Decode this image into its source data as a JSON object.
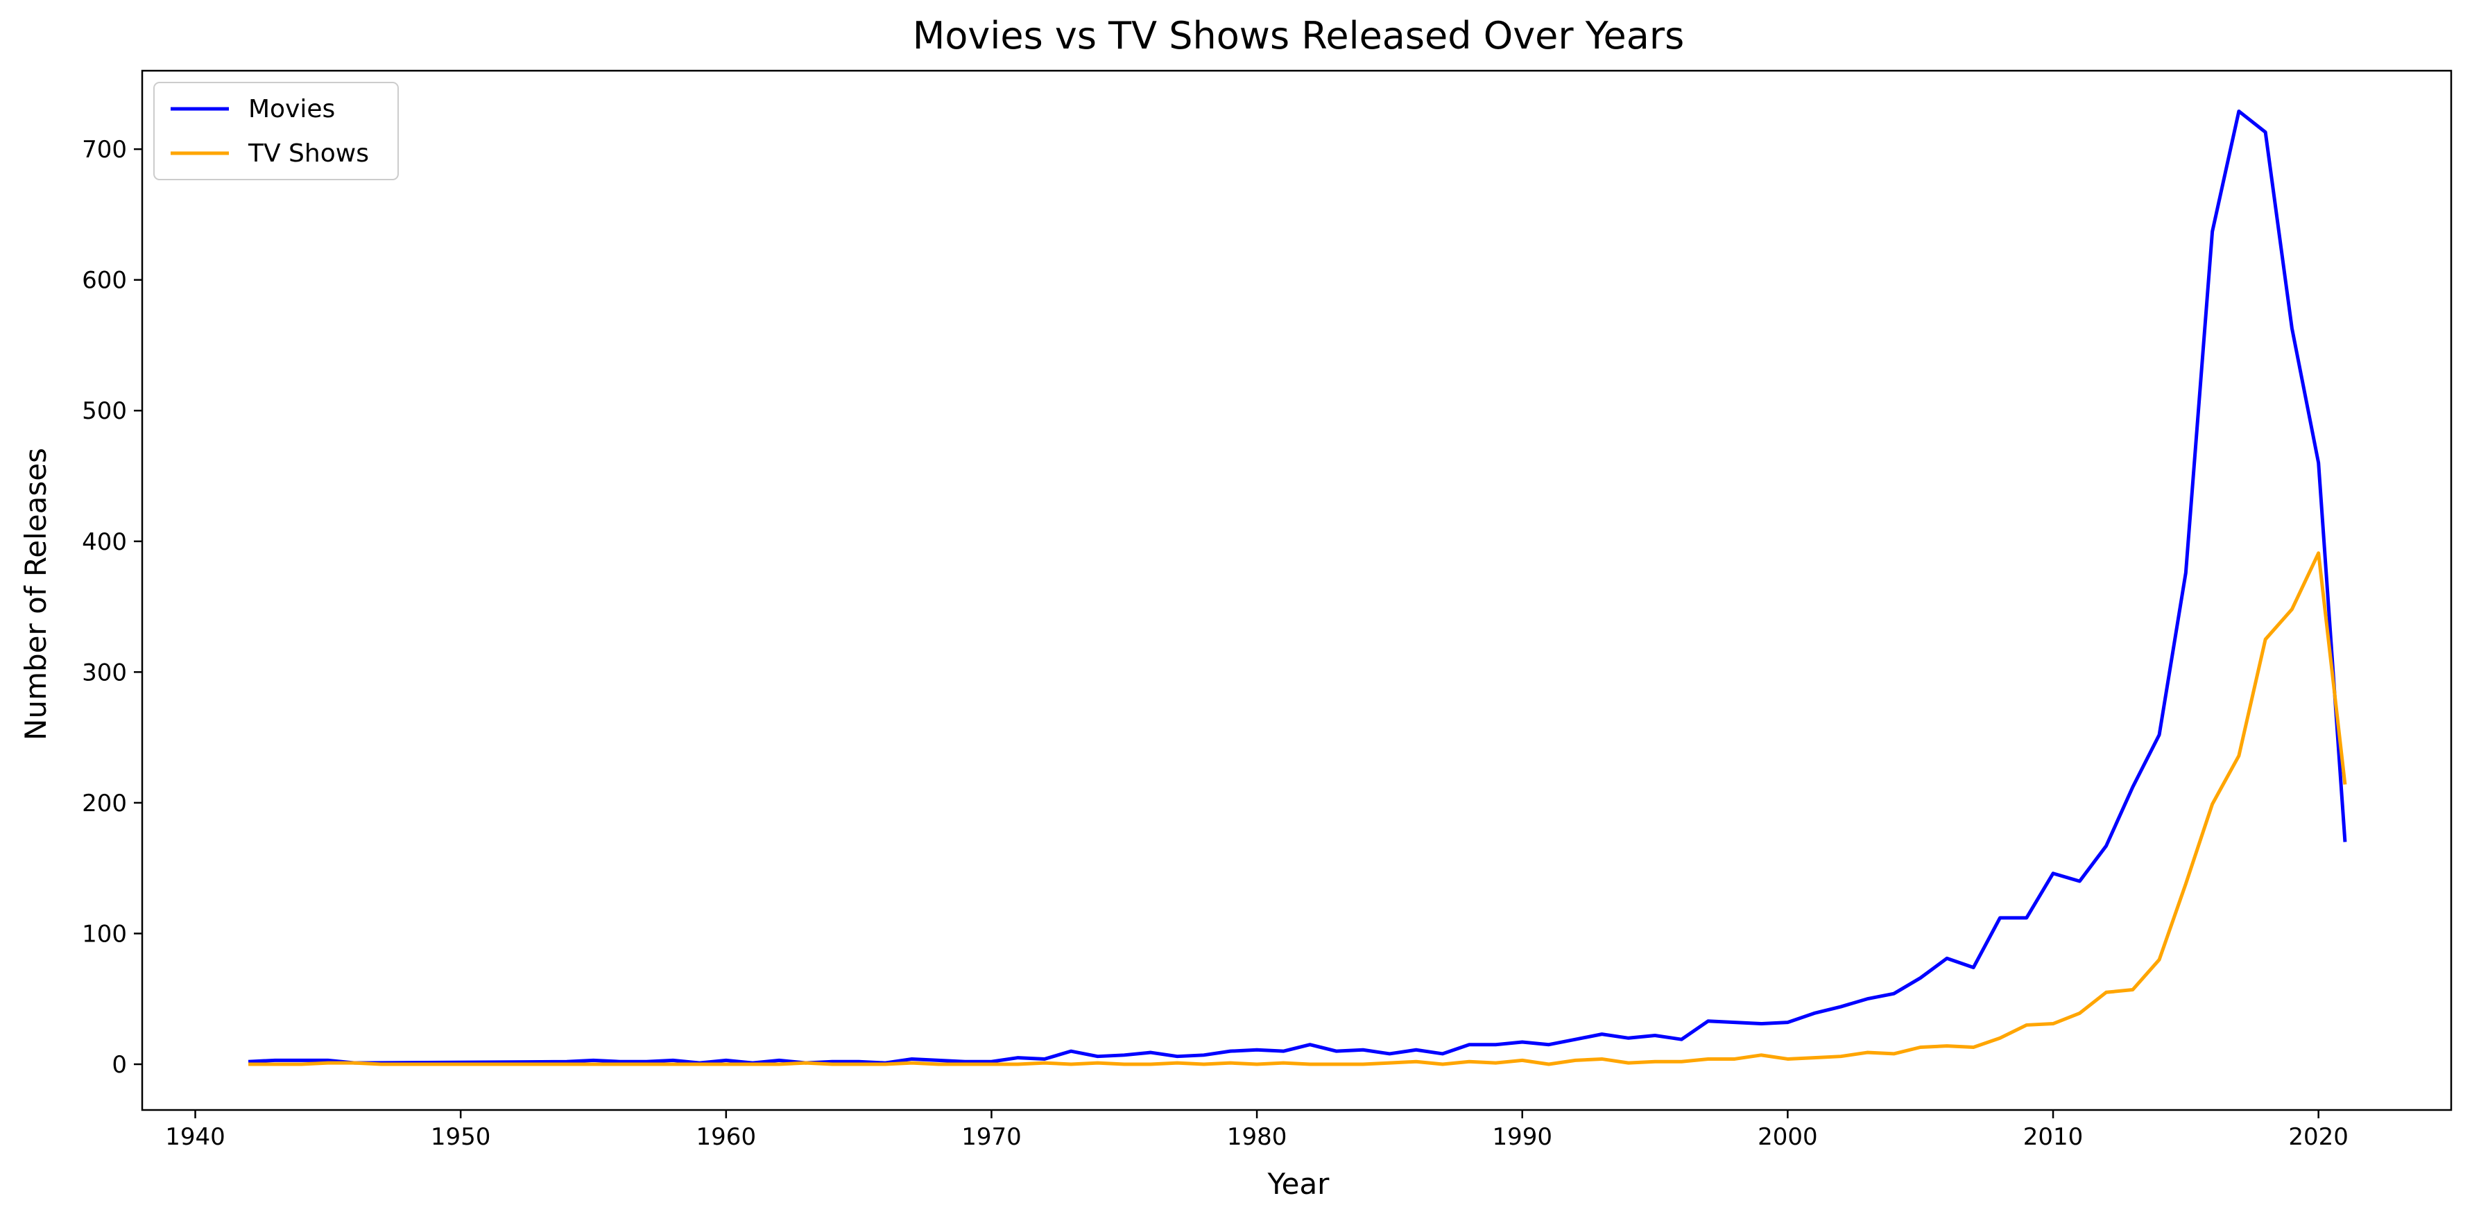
{
  "chart_data": {
    "type": "line",
    "title": "Movies vs TV Shows Released Over Years",
    "xlabel": "Year",
    "ylabel": "Number of Releases",
    "xlim": [
      1938,
      2025
    ],
    "ylim": [
      -35,
      760
    ],
    "x_ticks": [
      1940,
      1950,
      1960,
      1970,
      1980,
      1990,
      2000,
      2010,
      2020
    ],
    "y_ticks": [
      0,
      100,
      200,
      300,
      400,
      500,
      600,
      700
    ],
    "grid": false,
    "legend_position": "top-left",
    "series": [
      {
        "name": "Movies",
        "color": "#0000ff",
        "points": [
          [
            1942,
            2
          ],
          [
            1943,
            3
          ],
          [
            1944,
            3
          ],
          [
            1945,
            3
          ],
          [
            1946,
            1
          ],
          [
            1954,
            2
          ],
          [
            1955,
            3
          ],
          [
            1956,
            2
          ],
          [
            1957,
            2
          ],
          [
            1958,
            3
          ],
          [
            1959,
            1
          ],
          [
            1960,
            3
          ],
          [
            1961,
            1
          ],
          [
            1962,
            3
          ],
          [
            1963,
            1
          ],
          [
            1964,
            2
          ],
          [
            1965,
            2
          ],
          [
            1966,
            1
          ],
          [
            1967,
            4
          ],
          [
            1968,
            3
          ],
          [
            1969,
            2
          ],
          [
            1970,
            2
          ],
          [
            1971,
            5
          ],
          [
            1972,
            4
          ],
          [
            1973,
            10
          ],
          [
            1974,
            6
          ],
          [
            1975,
            7
          ],
          [
            1976,
            9
          ],
          [
            1977,
            6
          ],
          [
            1978,
            7
          ],
          [
            1979,
            10
          ],
          [
            1980,
            11
          ],
          [
            1981,
            10
          ],
          [
            1982,
            15
          ],
          [
            1983,
            10
          ],
          [
            1984,
            11
          ],
          [
            1985,
            8
          ],
          [
            1986,
            11
          ],
          [
            1987,
            8
          ],
          [
            1988,
            15
          ],
          [
            1989,
            15
          ],
          [
            1990,
            17
          ],
          [
            1991,
            15
          ],
          [
            1992,
            19
          ],
          [
            1993,
            23
          ],
          [
            1994,
            20
          ],
          [
            1995,
            22
          ],
          [
            1996,
            19
          ],
          [
            1997,
            33
          ],
          [
            1998,
            32
          ],
          [
            1999,
            31
          ],
          [
            2000,
            32
          ],
          [
            2001,
            39
          ],
          [
            2002,
            44
          ],
          [
            2003,
            50
          ],
          [
            2004,
            54
          ],
          [
            2005,
            66
          ],
          [
            2006,
            81
          ],
          [
            2007,
            74
          ],
          [
            2008,
            112
          ],
          [
            2009,
            112
          ],
          [
            2010,
            146
          ],
          [
            2011,
            140
          ],
          [
            2012,
            167
          ],
          [
            2013,
            212
          ],
          [
            2014,
            252
          ],
          [
            2015,
            376
          ],
          [
            2016,
            637
          ],
          [
            2017,
            729
          ],
          [
            2018,
            713
          ],
          [
            2019,
            563
          ],
          [
            2020,
            460
          ],
          [
            2021,
            170
          ]
        ]
      },
      {
        "name": "TV Shows",
        "color": "#ffa500",
        "points": [
          [
            1942,
            0
          ],
          [
            1943,
            0
          ],
          [
            1944,
            0
          ],
          [
            1945,
            1
          ],
          [
            1946,
            1
          ],
          [
            1947,
            0
          ],
          [
            1960,
            0
          ],
          [
            1961,
            0
          ],
          [
            1962,
            0
          ],
          [
            1963,
            1
          ],
          [
            1964,
            0
          ],
          [
            1965,
            0
          ],
          [
            1966,
            0
          ],
          [
            1967,
            1
          ],
          [
            1968,
            0
          ],
          [
            1969,
            0
          ],
          [
            1970,
            0
          ],
          [
            1971,
            0
          ],
          [
            1972,
            1
          ],
          [
            1973,
            0
          ],
          [
            1974,
            1
          ],
          [
            1975,
            0
          ],
          [
            1976,
            0
          ],
          [
            1977,
            1
          ],
          [
            1978,
            0
          ],
          [
            1979,
            1
          ],
          [
            1980,
            0
          ],
          [
            1981,
            1
          ],
          [
            1982,
            0
          ],
          [
            1983,
            0
          ],
          [
            1984,
            0
          ],
          [
            1985,
            1
          ],
          [
            1986,
            2
          ],
          [
            1987,
            0
          ],
          [
            1988,
            2
          ],
          [
            1989,
            1
          ],
          [
            1990,
            3
          ],
          [
            1991,
            0
          ],
          [
            1992,
            3
          ],
          [
            1993,
            4
          ],
          [
            1994,
            1
          ],
          [
            1995,
            2
          ],
          [
            1996,
            2
          ],
          [
            1997,
            4
          ],
          [
            1998,
            4
          ],
          [
            1999,
            7
          ],
          [
            2000,
            4
          ],
          [
            2001,
            5
          ],
          [
            2002,
            6
          ],
          [
            2003,
            9
          ],
          [
            2004,
            8
          ],
          [
            2005,
            13
          ],
          [
            2006,
            14
          ],
          [
            2007,
            13
          ],
          [
            2008,
            20
          ],
          [
            2009,
            30
          ],
          [
            2010,
            31
          ],
          [
            2011,
            39
          ],
          [
            2012,
            55
          ],
          [
            2013,
            57
          ],
          [
            2014,
            80
          ],
          [
            2015,
            138
          ],
          [
            2016,
            199
          ],
          [
            2017,
            236
          ],
          [
            2018,
            325
          ],
          [
            2019,
            348
          ],
          [
            2020,
            391
          ],
          [
            2021,
            214
          ]
        ]
      }
    ]
  }
}
